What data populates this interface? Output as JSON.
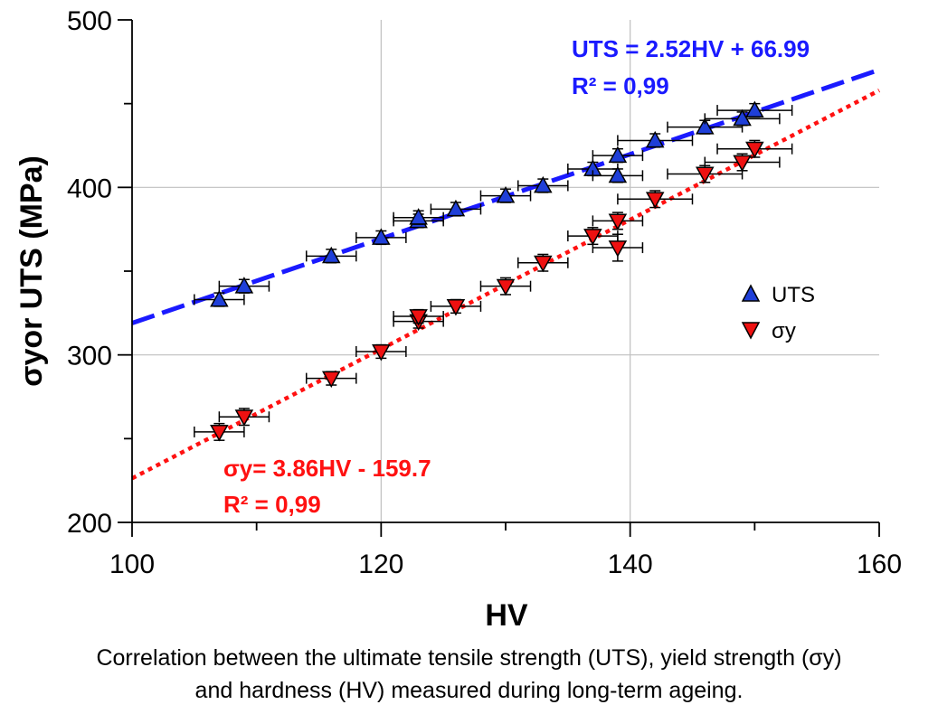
{
  "chart_data": {
    "type": "scatter",
    "xlabel": "HV",
    "ylabel": "σyor UTS (MPa)",
    "xlim": [
      100,
      160
    ],
    "ylim": [
      200,
      500
    ],
    "xticks": [
      100,
      120,
      140,
      160
    ],
    "yticks": [
      200,
      300,
      400,
      500
    ],
    "grid": true,
    "legend_position": "right",
    "series": [
      {
        "name": "UTS",
        "marker": "triangle-up",
        "color": "#1f3fd8",
        "fit_color": "#1a1aff",
        "fit": {
          "slope": 2.52,
          "intercept": 66.99,
          "equation": "UTS = 2.52HV + 66.99",
          "r2": "R² = 0,99"
        },
        "points": [
          {
            "x": 107,
            "y": 333,
            "xerr": 2,
            "yerr": 4
          },
          {
            "x": 109,
            "y": 341,
            "xerr": 2,
            "yerr": 4
          },
          {
            "x": 116,
            "y": 359,
            "xerr": 2,
            "yerr": 4
          },
          {
            "x": 120,
            "y": 370,
            "xerr": 2,
            "yerr": 4
          },
          {
            "x": 123,
            "y": 380,
            "xerr": 2,
            "yerr": 4
          },
          {
            "x": 123,
            "y": 382,
            "xerr": 2,
            "yerr": 4
          },
          {
            "x": 126,
            "y": 387,
            "xerr": 2,
            "yerr": 4
          },
          {
            "x": 130,
            "y": 395,
            "xerr": 2,
            "yerr": 4
          },
          {
            "x": 133,
            "y": 401,
            "xerr": 2,
            "yerr": 4
          },
          {
            "x": 137,
            "y": 411,
            "xerr": 2,
            "yerr": 4
          },
          {
            "x": 139,
            "y": 407,
            "xerr": 2,
            "yerr": 4
          },
          {
            "x": 139,
            "y": 419,
            "xerr": 2,
            "yerr": 4
          },
          {
            "x": 142,
            "y": 428,
            "xerr": 3,
            "yerr": 4
          },
          {
            "x": 146,
            "y": 436,
            "xerr": 3,
            "yerr": 4
          },
          {
            "x": 149,
            "y": 441,
            "xerr": 3,
            "yerr": 4
          },
          {
            "x": 150,
            "y": 446,
            "xerr": 3,
            "yerr": 4
          }
        ]
      },
      {
        "name": "σy",
        "marker": "triangle-down",
        "color": "#ee1111",
        "fit_color": "#ff1111",
        "fit": {
          "slope": 3.86,
          "intercept": -159.7,
          "equation": "σy= 3.86HV - 159.7",
          "r2": "R² = 0,99"
        },
        "points": [
          {
            "x": 107,
            "y": 254,
            "xerr": 2,
            "yerr": 5
          },
          {
            "x": 109,
            "y": 263,
            "xerr": 2,
            "yerr": 5
          },
          {
            "x": 116,
            "y": 286,
            "xerr": 2,
            "yerr": 4
          },
          {
            "x": 120,
            "y": 302,
            "xerr": 2,
            "yerr": 4
          },
          {
            "x": 123,
            "y": 320,
            "xerr": 2,
            "yerr": 4
          },
          {
            "x": 123,
            "y": 323,
            "xerr": 2,
            "yerr": 4
          },
          {
            "x": 126,
            "y": 329,
            "xerr": 2,
            "yerr": 4
          },
          {
            "x": 130,
            "y": 341,
            "xerr": 2,
            "yerr": 5
          },
          {
            "x": 133,
            "y": 355,
            "xerr": 2,
            "yerr": 5
          },
          {
            "x": 137,
            "y": 371,
            "xerr": 2,
            "yerr": 5
          },
          {
            "x": 139,
            "y": 380,
            "xerr": 2,
            "yerr": 5
          },
          {
            "x": 139,
            "y": 364,
            "xerr": 2,
            "yerr": 8
          },
          {
            "x": 142,
            "y": 393,
            "xerr": 3,
            "yerr": 5
          },
          {
            "x": 146,
            "y": 408,
            "xerr": 3,
            "yerr": 5
          },
          {
            "x": 149,
            "y": 415,
            "xerr": 3,
            "yerr": 5
          },
          {
            "x": 150,
            "y": 423,
            "xerr": 3,
            "yerr": 5
          }
        ]
      }
    ]
  },
  "caption": {
    "line1": "Correlation between the ultimate tensile strength (UTS), yield strength (σy)",
    "line2": "and hardness (HV) measured during long-term ageing."
  }
}
